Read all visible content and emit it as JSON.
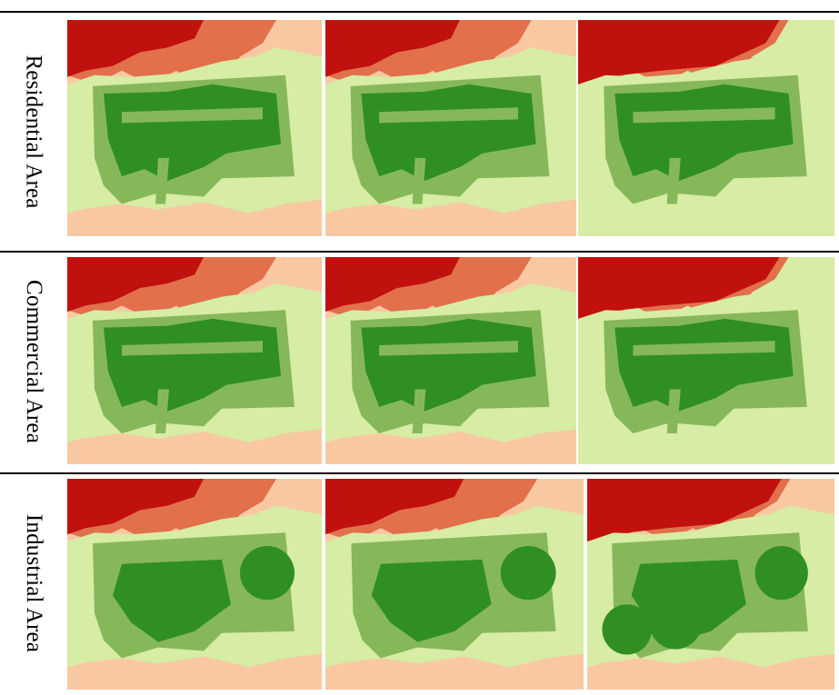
{
  "figure": {
    "rows": [
      {
        "label": "Residential Area",
        "maps": [
          "r1c1",
          "r1c2",
          "r1c3"
        ]
      },
      {
        "label": "Commercial Area",
        "maps": [
          "r2c1",
          "r2c2",
          "r2c3"
        ]
      },
      {
        "label": "Industrial Area",
        "maps": [
          "r3c1",
          "r3c2",
          "r3c3"
        ]
      }
    ]
  },
  "legend_colors": {
    "very_high": "#c0110f",
    "high": "#e2704b",
    "moderate": "#f8c8a2",
    "low": "#d7eca4",
    "lower": "#86b85a",
    "lowest": "#2f8f22"
  }
}
